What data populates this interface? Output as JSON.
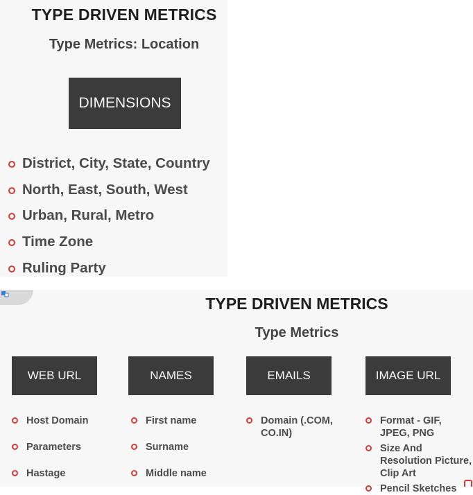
{
  "slide1": {
    "title": "TYPE DRIVEN METRICS",
    "subtitle": "Type Metrics: Location",
    "box_label": "DIMENSIONS",
    "items": [
      "District, City, State, Country",
      "North, East, South, West",
      "Urban, Rural, Metro",
      "Time Zone",
      "Ruling Party"
    ]
  },
  "slide2": {
    "title": "TYPE DRIVEN METRICS",
    "subtitle": "Type Metrics",
    "columns": [
      {
        "label": "WEB URL",
        "items": [
          "Host Domain",
          "Parameters",
          "Hastage"
        ]
      },
      {
        "label": "NAMES",
        "items": [
          "First name",
          "Surname",
          "Middle name"
        ]
      },
      {
        "label": "EMAILS",
        "items": [
          "Domain (.COM, CO.IN)"
        ]
      },
      {
        "label": "IMAGE URL",
        "items": [
          "Format - GIF, JPEG, PNG",
          "Size And Resolution Picture, Clip Art",
          "Pencil Sketches"
        ]
      }
    ]
  },
  "colors": {
    "box": "#3b3b3b",
    "bullet": "#d23b34",
    "background": "#f7f7f7"
  }
}
